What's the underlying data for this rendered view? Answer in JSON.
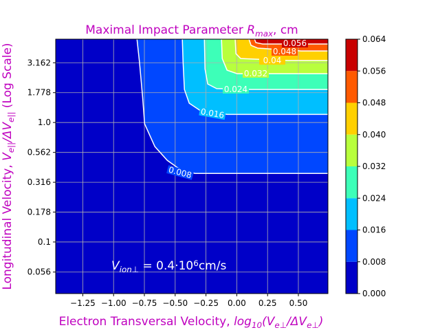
{
  "chart_data": {
    "type": "contour",
    "title": [
      "Maximal Impact Parameter ",
      "R",
      "max",
      ", cm"
    ],
    "x_label": [
      "Electron Transversal Velocity, ",
      "log",
      "10",
      "(V",
      "e⊥",
      "/ΔV",
      "e⊥",
      ")"
    ],
    "y_label": [
      "Longitudinal Velocity, ",
      "V",
      "e||",
      "/ΔV",
      "e||",
      " (Log Scale)"
    ],
    "annotation": [
      "V",
      "ion⊥",
      " = 0.4·10",
      "6",
      "cm/s"
    ],
    "xlim": [
      -1.47,
      0.74
    ],
    "ylim": [
      0.037,
      4.98
    ],
    "y_scale": "log",
    "grid": true,
    "xticks": [
      {
        "value": -1.25,
        "label": "−1.25"
      },
      {
        "value": -1.0,
        "label": "−1.00"
      },
      {
        "value": -0.75,
        "label": "−0.75"
      },
      {
        "value": -0.5,
        "label": "−0.50"
      },
      {
        "value": -0.25,
        "label": "−0.25"
      },
      {
        "value": 0,
        "label": "0.00"
      },
      0.25,
      {
        "value": 0.5,
        "label": "0.50"
      }
    ],
    "yticks": [
      0.056,
      0.1,
      0.178,
      0.316,
      0.562,
      {
        "value": 1,
        "label": "1.0"
      },
      1.778,
      3.162
    ],
    "colorbar_ticks": [
      {
        "value": 0,
        "label": "0.000"
      },
      0.008,
      0.016,
      0.024,
      0.032,
      {
        "value": 0.04,
        "label": "0.040"
      },
      0.048,
      0.056,
      0.064
    ],
    "colors": [
      "#0000c8",
      "#0047ff",
      "#00bfff",
      "#3dffb8",
      "#b8ff3d",
      "#ffd000",
      "#ff5a00",
      "#c80000"
    ],
    "contours": [
      {
        "level": 0.008,
        "x": [
          -0.81,
          -0.79,
          -0.765,
          -0.748,
          -0.665,
          -0.564,
          -0.47,
          -0.34,
          0.74
        ],
        "y": [
          4.98,
          3.21,
          1.66,
          0.974,
          0.629,
          0.482,
          0.411,
          0.375,
          0.375
        ]
      },
      {
        "level": 0.016,
        "x": [
          -0.442,
          -0.436,
          -0.425,
          -0.386,
          -0.302,
          -0.079,
          0.74
        ],
        "y": [
          4.98,
          3.21,
          1.89,
          1.45,
          1.27,
          1.17,
          1.17
        ]
      },
      {
        "level": 0.024,
        "x": [
          -0.263,
          -0.258,
          -0.236,
          -0.163,
          0.116,
          0.74
        ],
        "y": [
          4.98,
          2.81,
          2.1,
          1.92,
          1.89,
          1.89
        ]
      },
      {
        "level": 0.032,
        "x": [
          -0.124,
          -0.118,
          -0.079,
          0.004,
          0.283,
          0.74
        ],
        "y": [
          4.98,
          3.43,
          2.74,
          2.56,
          2.56,
          2.56
        ]
      },
      {
        "level": 0.04,
        "x": [
          -0.013,
          -0.007,
          0.032,
          0.422,
          0.74
        ],
        "y": [
          4.98,
          3.77,
          3.43,
          3.3,
          3.3
        ]
      },
      {
        "level": 0.048,
        "x": [
          0.099,
          0.116,
          0.171,
          0.523,
          0.74
        ],
        "y": [
          4.98,
          4.42,
          4.19,
          3.97,
          3.97
        ]
      },
      {
        "level": 0.056,
        "x": [
          0.144,
          0.155,
          0.21,
          0.6,
          0.74
        ],
        "y": [
          4.98,
          4.66,
          4.54,
          4.54,
          4.54
        ]
      }
    ]
  }
}
